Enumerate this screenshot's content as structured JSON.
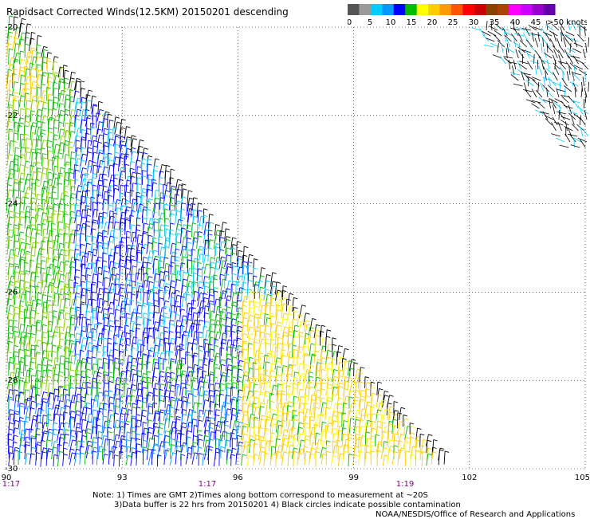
{
  "title": "Rapidsact Corrected Winds(12.5KM) 20150201 descending",
  "scale": {
    "unit_label": ">50 knots",
    "ticks": [
      "0",
      "5",
      "10",
      "15",
      "20",
      "25",
      "30",
      "35",
      "40",
      "45"
    ],
    "colors": [
      "#555555",
      "#9a9a9a",
      "#00ccff",
      "#0099ff",
      "#0000ff",
      "#00bb00",
      "#ffff00",
      "#ffcc00",
      "#ff9900",
      "#ff5500",
      "#ff0000",
      "#cc0000",
      "#884400",
      "#aa4400",
      "#ff00ff",
      "#cc00ff",
      "#9900cc",
      "#6600aa"
    ]
  },
  "axes": {
    "lat_labels": [
      "-20",
      "-22",
      "-24",
      "-26",
      "-28",
      "-30"
    ],
    "lon_labels": [
      "90",
      "93",
      "96",
      "99",
      "102",
      "105"
    ],
    "time_labels": [
      "1:17",
      "1:17",
      "1:19"
    ]
  },
  "notes": {
    "line1": "Note: 1) Times are GMT 2)Times along bottom correspond to measurement at ~20S",
    "line2": "3)Data buffer is 22 hrs from 20150201 4) Black circles indicate possible contamination",
    "line3": "NOAA/NESDIS/Office of Research and Applications"
  }
}
